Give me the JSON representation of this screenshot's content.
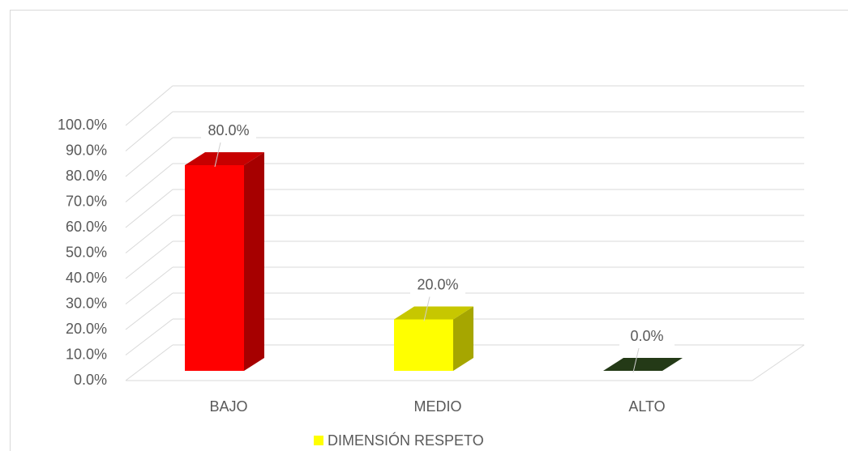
{
  "chart_data": {
    "type": "bar3d",
    "categories": [
      "BAJO",
      "MEDIO",
      "ALTO"
    ],
    "series": [
      {
        "name": "DIMENSIÓN RESPETO",
        "color": "#ffff00",
        "colors": [
          "#ff0000",
          "#ffff00",
          "#2e4a1e"
        ],
        "values": [
          80,
          20,
          0
        ],
        "value_labels": [
          "80.0%",
          "20.0%",
          "0.0%"
        ]
      }
    ],
    "ylim": [
      0,
      100
    ],
    "yticks": [
      {
        "value": 0,
        "label": "0.0%"
      },
      {
        "value": 10,
        "label": "10.0%"
      },
      {
        "value": 20,
        "label": "20.0%"
      },
      {
        "value": 30,
        "label": "30.0%"
      },
      {
        "value": 40,
        "label": "40.0%"
      },
      {
        "value": 50,
        "label": "50.0%"
      },
      {
        "value": 60,
        "label": "60.0%"
      },
      {
        "value": 70,
        "label": "70.0%"
      },
      {
        "value": 80,
        "label": "80.0%"
      },
      {
        "value": 90,
        "label": "90.0%"
      },
      {
        "value": 100,
        "label": "100.0%"
      }
    ],
    "grid": true,
    "legend": "bottom"
  }
}
